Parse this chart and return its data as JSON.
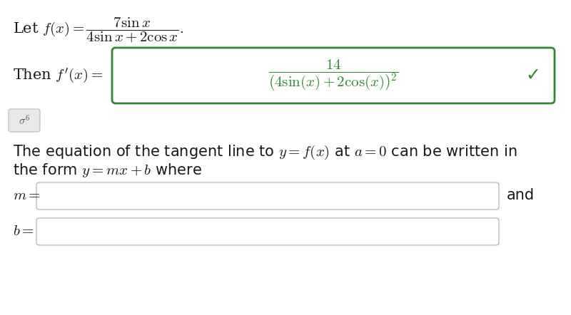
{
  "bg_color": "#ffffff",
  "text_color": "#1a1a1a",
  "green_color": "#2d8a2d",
  "gray_color": "#999999",
  "sigma_bg": "#e8e8e8",
  "green_check": "✓",
  "font_size_let": 15,
  "font_size_box": 15,
  "font_size_para": 15,
  "font_size_check": 18,
  "font_size_sigma": 11
}
